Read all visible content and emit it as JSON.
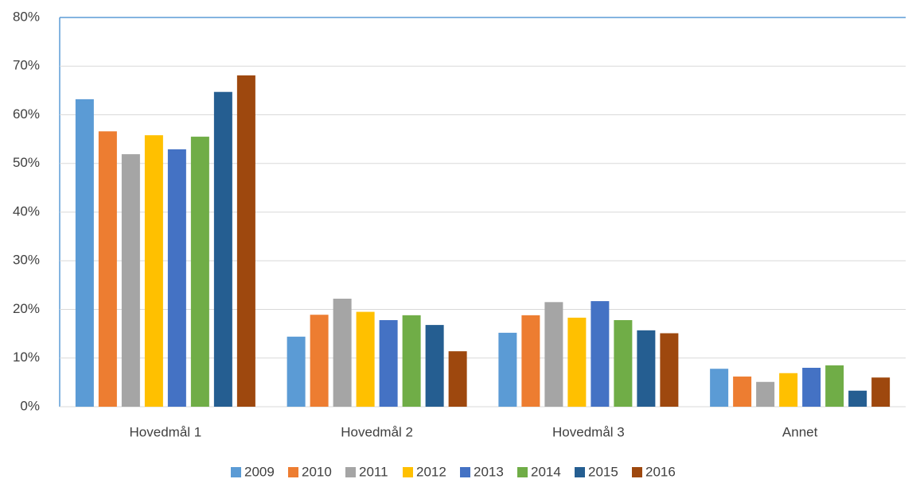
{
  "chart_data": {
    "type": "bar",
    "categories": [
      "Hovedmål 1",
      "Hovedmål 2",
      "Hovedmål 3",
      "Annet"
    ],
    "series": [
      {
        "name": "2009",
        "color": "#5b9bd5",
        "values": [
          63.2,
          14.4,
          15.2,
          7.8
        ]
      },
      {
        "name": "2010",
        "color": "#ed7d31",
        "values": [
          56.6,
          18.9,
          18.8,
          6.2
        ]
      },
      {
        "name": "2011",
        "color": "#a5a5a5",
        "values": [
          51.9,
          22.2,
          21.5,
          5.1
        ]
      },
      {
        "name": "2012",
        "color": "#ffc000",
        "values": [
          55.8,
          19.5,
          18.3,
          6.9
        ]
      },
      {
        "name": "2013",
        "color": "#4472c4",
        "values": [
          52.9,
          17.8,
          21.7,
          8.0
        ]
      },
      {
        "name": "2014",
        "color": "#70ad47",
        "values": [
          55.5,
          18.8,
          17.8,
          8.5
        ]
      },
      {
        "name": "2015",
        "color": "#255e91",
        "values": [
          64.7,
          16.8,
          15.7,
          3.3
        ]
      },
      {
        "name": "2016",
        "color": "#9e480e",
        "values": [
          68.1,
          11.4,
          15.1,
          6.0
        ]
      }
    ],
    "ylim": [
      0,
      80
    ],
    "yticks": [
      {
        "value": 0,
        "label": "0%"
      },
      {
        "value": 10,
        "label": "10%"
      },
      {
        "value": 20,
        "label": "20%"
      },
      {
        "value": 30,
        "label": "30%"
      },
      {
        "value": 40,
        "label": "40%"
      },
      {
        "value": 50,
        "label": "50%"
      },
      {
        "value": 60,
        "label": "60%"
      },
      {
        "value": 70,
        "label": "70%"
      },
      {
        "value": 80,
        "label": "80%"
      }
    ],
    "grid": true,
    "legend": "bottom"
  }
}
